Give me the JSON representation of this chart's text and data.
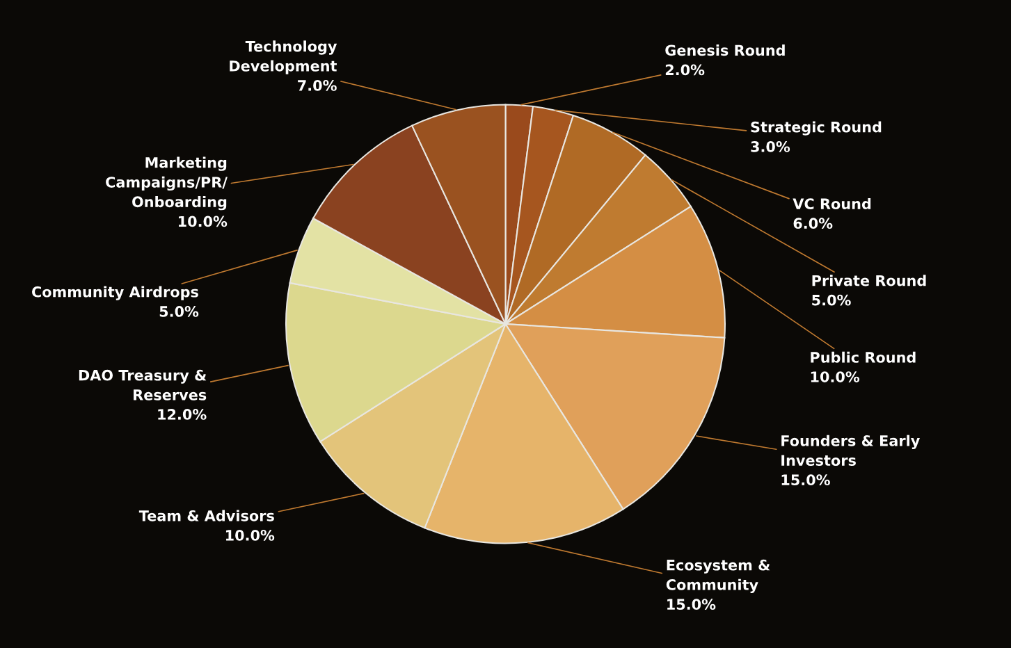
{
  "chart_data": {
    "type": "pie",
    "categories": [
      "Genesis Round",
      "Strategic Round",
      "VC Round",
      "Private Round",
      "Public Round",
      "Founders & Early Investors",
      "Ecosystem & Community",
      "Team & Advisors",
      "DAO Treasury & Reserves",
      "Community Airdrops",
      "Marketing Campaigns/PR/ Onboarding",
      "Technology Development"
    ],
    "values": [
      2,
      3,
      6,
      5,
      10,
      15,
      15,
      10,
      12,
      5,
      10,
      7
    ],
    "value_labels": [
      "2.0%",
      "3.0%",
      "6.0%",
      "5.0%",
      "10.0%",
      "15.0%",
      "15.0%",
      "10.0%",
      "12.0%",
      "5.0%",
      "10.0%",
      "7.0%"
    ],
    "colors": [
      "#9a4a1c",
      "#a6561f",
      "#b06a25",
      "#bf7b30",
      "#d48e44",
      "#e0a05a",
      "#e6b46a",
      "#e3c47a",
      "#dcd88e",
      "#e3e2a4",
      "#8a4220",
      "#9a5220"
    ]
  }
}
